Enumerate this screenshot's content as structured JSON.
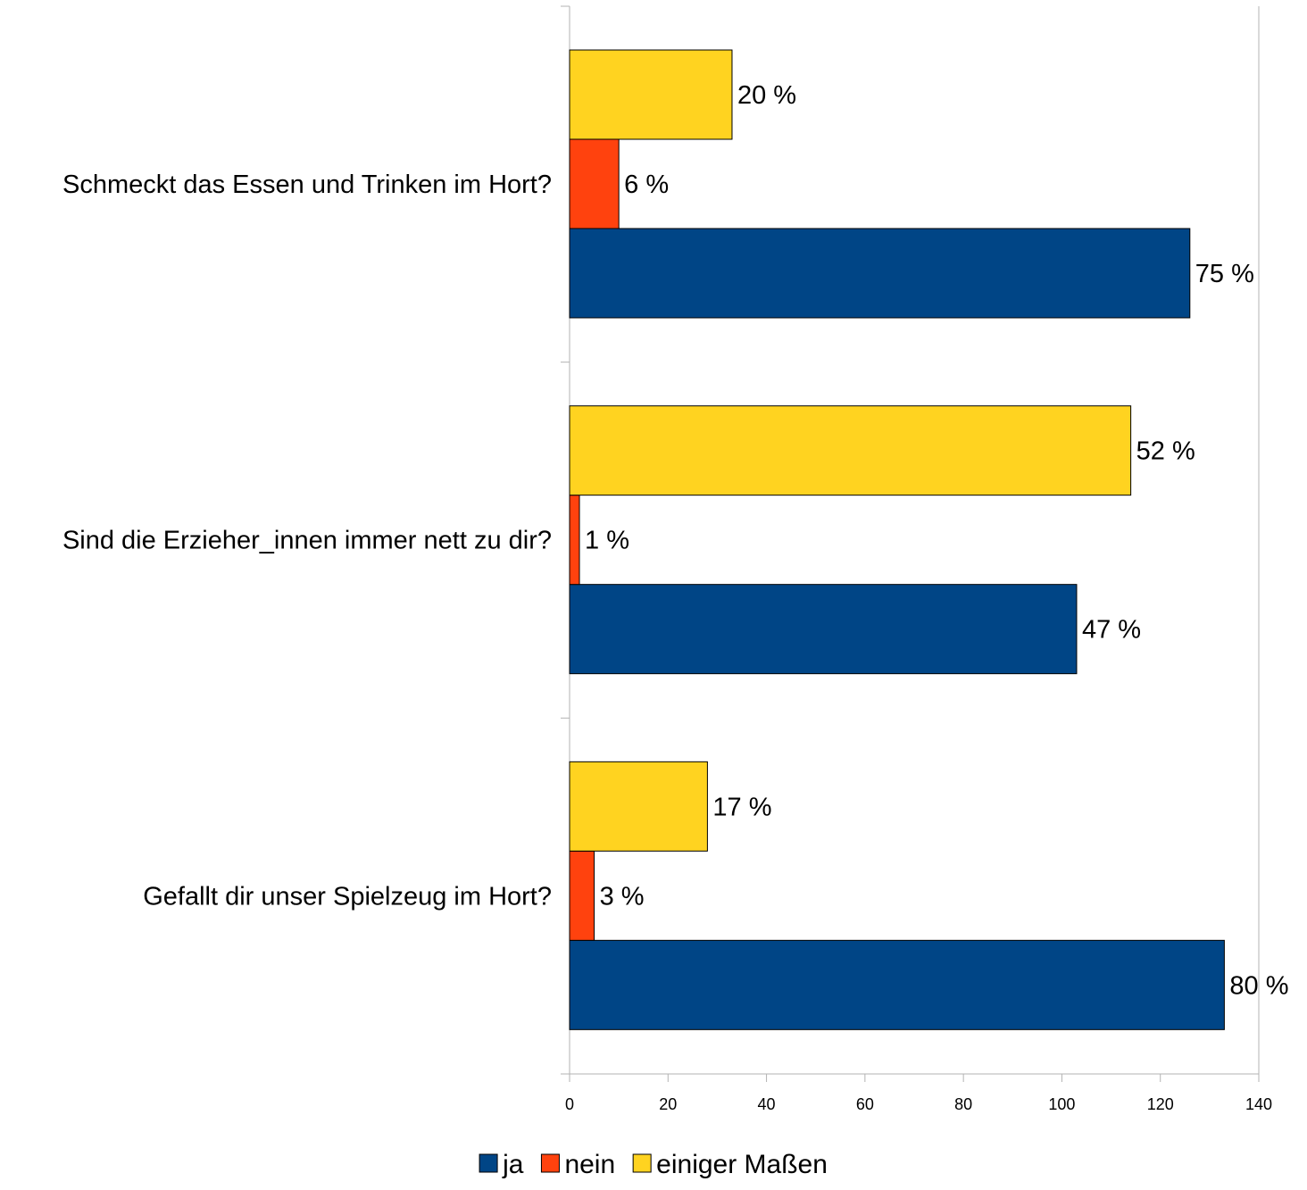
{
  "chart_data": {
    "type": "bar",
    "orientation": "horizontal",
    "title": "",
    "xlabel": "",
    "ylabel": "",
    "xlim": [
      0,
      140
    ],
    "xticks": [
      0,
      20,
      40,
      60,
      80,
      100,
      120,
      140
    ],
    "tick_labels": [
      "0",
      "20",
      "40",
      "60",
      "80",
      "100",
      "120",
      "140"
    ],
    "grid": false,
    "legend_position": "bottom",
    "categories": [
      "Schmeckt das Essen und Trinken im Hort?",
      "Sind die Erzieher_innen immer nett zu dir?",
      "Gefallt dir unser Spielzeug im Hort?"
    ],
    "series": [
      {
        "name": "ja",
        "color": "#004586",
        "values": [
          126,
          103,
          133
        ],
        "labels": [
          "75 %",
          "47 %",
          "80 %"
        ]
      },
      {
        "name": "nein",
        "color": "#ff420e",
        "values": [
          10,
          2,
          5
        ],
        "labels": [
          "6 %",
          "1 %",
          "3 %"
        ]
      },
      {
        "name": "einiger Maßen",
        "color": "#ffd320",
        "values": [
          33,
          114,
          28
        ],
        "labels": [
          "20 %",
          "52 %",
          "17 %"
        ]
      }
    ]
  }
}
